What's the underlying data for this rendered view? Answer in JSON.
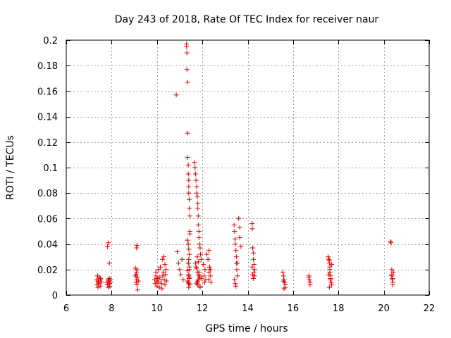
{
  "chart_data": {
    "type": "scatter",
    "title": "Day 243 of 2018, Rate Of TEC Index for receiver naur",
    "xlabel": "GPS time / hours",
    "ylabel": "ROTI / TECUs",
    "xlim": [
      6,
      22
    ],
    "ylim": [
      0,
      0.2
    ],
    "xticks": [
      6,
      8,
      10,
      12,
      14,
      16,
      18,
      20,
      22
    ],
    "yticks": [
      0,
      0.02,
      0.04,
      0.06,
      0.08,
      0.1,
      0.12,
      0.14,
      0.16,
      0.18,
      0.2
    ],
    "xtick_labels": [
      "6",
      "8",
      "10",
      "12",
      "14",
      "16",
      "18",
      "20",
      "22"
    ],
    "ytick_labels": [
      "0",
      "0.02",
      "0.04",
      "0.06",
      "0.08",
      "0.1",
      "0.12",
      "0.14",
      "0.16",
      "0.18",
      "0.2"
    ],
    "marker": "+",
    "color": "#e00000",
    "grid": true,
    "series": [
      {
        "name": "ROTI",
        "x": [
          7.35,
          7.35,
          7.38,
          7.4,
          7.4,
          7.42,
          7.45,
          7.45,
          7.5,
          7.5,
          7.52,
          7.55,
          7.8,
          7.82,
          7.85,
          7.85,
          7.88,
          7.9,
          7.9,
          7.92,
          7.95,
          7.95,
          7.82,
          7.85,
          7.9,
          9.05,
          9.05,
          9.08,
          9.1,
          9.1,
          9.12,
          9.12,
          9.15,
          9.15,
          9.18,
          9.1,
          9.12,
          9.08,
          9.9,
          9.92,
          9.95,
          9.95,
          10.0,
          10.0,
          10.02,
          10.05,
          10.08,
          10.1,
          10.1,
          10.15,
          10.18,
          10.2,
          10.22,
          10.25,
          10.25,
          10.3,
          10.3,
          10.32,
          10.35,
          10.35,
          10.38,
          10.4,
          10.42,
          10.85,
          10.9,
          10.95,
          11.0,
          11.05,
          11.1,
          11.15,
          11.3,
          11.3,
          11.32,
          11.32,
          11.35,
          11.35,
          11.35,
          11.38,
          11.38,
          11.4,
          11.4,
          11.4,
          11.42,
          11.42,
          11.45,
          11.45,
          11.45,
          11.35,
          11.38,
          11.4,
          11.42,
          11.4,
          11.38,
          11.42,
          11.35,
          11.4,
          11.42,
          11.38,
          11.45,
          11.4,
          11.4,
          11.42,
          11.38,
          11.35,
          11.4,
          11.42,
          11.65,
          11.68,
          11.7,
          11.72,
          11.75,
          11.75,
          11.78,
          11.8,
          11.8,
          11.82,
          11.82,
          11.85,
          11.85,
          11.88,
          11.9,
          11.92,
          11.95,
          11.7,
          11.75,
          11.8,
          11.85,
          11.82,
          11.78,
          11.8,
          11.9,
          11.72,
          11.85,
          11.88,
          11.8,
          11.75,
          11.9,
          11.95,
          11.85,
          11.82,
          11.78,
          12.05,
          12.08,
          12.1,
          12.12,
          12.15,
          12.2,
          12.25,
          12.3,
          12.3,
          12.35,
          12.35,
          12.32,
          12.28,
          12.38,
          13.4,
          13.42,
          13.45,
          13.45,
          13.48,
          13.5,
          13.5,
          13.52,
          13.55,
          13.42,
          13.45,
          13.48,
          13.55,
          13.6,
          13.65,
          13.65,
          13.7,
          14.2,
          14.2,
          14.22,
          14.25,
          14.25,
          14.28,
          14.3,
          14.22,
          14.25,
          14.28,
          14.2,
          14.3,
          15.55,
          15.58,
          15.6,
          15.62,
          15.65,
          15.65,
          15.6,
          15.58,
          16.7,
          16.72,
          16.75,
          16.75,
          16.7,
          17.55,
          17.58,
          17.6,
          17.62,
          17.62,
          17.65,
          17.65,
          17.68,
          17.7,
          17.6,
          17.62,
          17.58,
          17.65,
          17.6,
          17.7,
          20.3,
          20.32,
          20.35,
          20.35,
          20.38,
          20.4,
          20.4,
          20.42,
          20.35,
          20.38
        ],
        "y": [
          0.012,
          0.008,
          0.015,
          0.011,
          0.006,
          0.01,
          0.014,
          0.009,
          0.013,
          0.007,
          0.012,
          0.01,
          0.01,
          0.008,
          0.012,
          0.006,
          0.011,
          0.009,
          0.013,
          0.007,
          0.012,
          0.01,
          0.038,
          0.041,
          0.025,
          0.021,
          0.015,
          0.01,
          0.018,
          0.012,
          0.008,
          0.02,
          0.014,
          0.004,
          0.011,
          0.037,
          0.039,
          0.016,
          0.012,
          0.009,
          0.015,
          0.018,
          0.011,
          0.007,
          0.013,
          0.01,
          0.02,
          0.006,
          0.014,
          0.022,
          0.012,
          0.009,
          0.005,
          0.028,
          0.015,
          0.018,
          0.03,
          0.012,
          0.024,
          0.008,
          0.016,
          0.02,
          0.011,
          0.157,
          0.034,
          0.025,
          0.02,
          0.016,
          0.028,
          0.012,
          0.197,
          0.195,
          0.19,
          0.177,
          0.167,
          0.127,
          0.108,
          0.102,
          0.095,
          0.09,
          0.085,
          0.08,
          0.075,
          0.068,
          0.062,
          0.05,
          0.048,
          0.043,
          0.04,
          0.036,
          0.032,
          0.028,
          0.025,
          0.022,
          0.019,
          0.016,
          0.013,
          0.01,
          0.008,
          0.006,
          0.015,
          0.02,
          0.025,
          0.011,
          0.009,
          0.014,
          0.104,
          0.1,
          0.095,
          0.09,
          0.085,
          0.08,
          0.077,
          0.072,
          0.068,
          0.062,
          0.055,
          0.05,
          0.045,
          0.04,
          0.037,
          0.032,
          0.028,
          0.025,
          0.021,
          0.018,
          0.015,
          0.012,
          0.01,
          0.008,
          0.006,
          0.022,
          0.016,
          0.014,
          0.011,
          0.009,
          0.007,
          0.013,
          0.018,
          0.026,
          0.03,
          0.024,
          0.015,
          0.01,
          0.02,
          0.012,
          0.032,
          0.028,
          0.018,
          0.035,
          0.02,
          0.015,
          0.022,
          0.012,
          0.01,
          0.055,
          0.05,
          0.044,
          0.04,
          0.035,
          0.03,
          0.025,
          0.02,
          0.015,
          0.012,
          0.009,
          0.007,
          0.025,
          0.06,
          0.053,
          0.045,
          0.038,
          0.056,
          0.052,
          0.037,
          0.033,
          0.028,
          0.024,
          0.02,
          0.016,
          0.013,
          0.018,
          0.022,
          0.015,
          0.018,
          0.015,
          0.012,
          0.01,
          0.008,
          0.006,
          0.005,
          0.011,
          0.015,
          0.012,
          0.01,
          0.008,
          0.014,
          0.03,
          0.028,
          0.025,
          0.022,
          0.018,
          0.015,
          0.012,
          0.01,
          0.008,
          0.006,
          0.02,
          0.016,
          0.013,
          0.027,
          0.024,
          0.042,
          0.041,
          0.02,
          0.016,
          0.013,
          0.01,
          0.008,
          0.018,
          0.015,
          0.012
        ]
      }
    ]
  }
}
